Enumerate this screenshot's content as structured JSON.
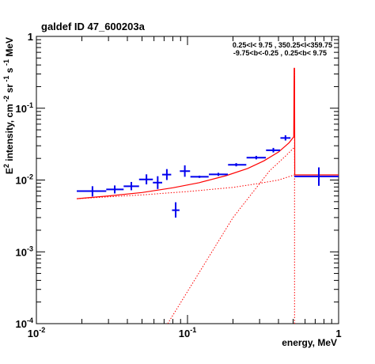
{
  "chart_data": {
    "type": "scatter",
    "title": "galdef ID 47_600203a",
    "annotation": {
      "line1": "0.25<l< 9.75 , 350.25<l<359.75",
      "line2": "-9.75<b<-0.25 ,  0.25<b< 9.75"
    },
    "xlabel": "energy, MeV",
    "ylabel_parts": [
      "E",
      "2",
      " intensity, cm",
      " -2",
      " sr",
      " -1",
      " s",
      " -1",
      " MeV"
    ],
    "xscale": "log",
    "yscale": "log",
    "xlim": [
      0.01,
      1
    ],
    "ylim": [
      0.0001,
      1
    ],
    "x_tick_labels": [
      {
        "value": 0.01,
        "base": "10",
        "exp": "-2"
      },
      {
        "value": 0.1,
        "base": "10",
        "exp": "-1"
      },
      {
        "value": 1,
        "base": "1",
        "exp": ""
      }
    ],
    "y_tick_labels": [
      {
        "value": 0.0001,
        "base": "10",
        "exp": "-4"
      },
      {
        "value": 0.001,
        "base": "10",
        "exp": "-3"
      },
      {
        "value": 0.01,
        "base": "10",
        "exp": "-2"
      },
      {
        "value": 0.1,
        "base": "10",
        "exp": "-1"
      },
      {
        "value": 1,
        "base": "1",
        "exp": ""
      }
    ],
    "colors": {
      "data": "#0000ee",
      "model": "#ff0000",
      "frame": "#000000"
    },
    "series": [
      {
        "kind": "data-points",
        "points": [
          {
            "x": 0.0235,
            "y": 0.007,
            "xlo": 0.0185,
            "xhi": 0.029,
            "ylo": 0.0059,
            "yhi": 0.0082
          },
          {
            "x": 0.033,
            "y": 0.0074,
            "xlo": 0.029,
            "xhi": 0.0378,
            "ylo": 0.0065,
            "yhi": 0.0084
          },
          {
            "x": 0.0425,
            "y": 0.0082,
            "xlo": 0.0378,
            "xhi": 0.0478,
            "ylo": 0.0072,
            "yhi": 0.0094
          },
          {
            "x": 0.0535,
            "y": 0.0102,
            "xlo": 0.0478,
            "xhi": 0.059,
            "ylo": 0.0087,
            "yhi": 0.012
          },
          {
            "x": 0.0635,
            "y": 0.0092,
            "xlo": 0.059,
            "xhi": 0.068,
            "ylo": 0.0075,
            "yhi": 0.0113
          },
          {
            "x": 0.073,
            "y": 0.0119,
            "xlo": 0.068,
            "xhi": 0.078,
            "ylo": 0.01,
            "yhi": 0.0142
          },
          {
            "x": 0.0835,
            "y": 0.0038,
            "xlo": 0.079,
            "xhi": 0.0885,
            "ylo": 0.003,
            "yhi": 0.0049
          },
          {
            "x": 0.096,
            "y": 0.0133,
            "xlo": 0.089,
            "xhi": 0.104,
            "ylo": 0.0111,
            "yhi": 0.016
          },
          {
            "x": 0.12,
            "y": 0.0111,
            "xlo": 0.1045,
            "xhi": 0.138,
            "ylo": 0.0107,
            "yhi": 0.0115
          },
          {
            "x": 0.16,
            "y": 0.012,
            "xlo": 0.1385,
            "xhi": 0.185,
            "ylo": 0.0114,
            "yhi": 0.0126
          },
          {
            "x": 0.21,
            "y": 0.0163,
            "xlo": 0.1855,
            "xhi": 0.245,
            "ylo": 0.0155,
            "yhi": 0.0172
          },
          {
            "x": 0.285,
            "y": 0.0205,
            "xlo": 0.246,
            "xhi": 0.33,
            "ylo": 0.0194,
            "yhi": 0.0217
          },
          {
            "x": 0.37,
            "y": 0.026,
            "xlo": 0.331,
            "xhi": 0.41,
            "ylo": 0.0242,
            "yhi": 0.028
          },
          {
            "x": 0.445,
            "y": 0.0385,
            "xlo": 0.412,
            "xhi": 0.48,
            "ylo": 0.0355,
            "yhi": 0.042
          },
          {
            "x": 0.74,
            "y": 0.0112,
            "xlo": 0.51,
            "xhi": 1.0,
            "ylo": 0.0083,
            "yhi": 0.015
          }
        ]
      },
      {
        "kind": "model-total",
        "style": "solid",
        "points": [
          [
            0.0185,
            0.0055
          ],
          [
            0.03,
            0.006
          ],
          [
            0.05,
            0.0067
          ],
          [
            0.08,
            0.0078
          ],
          [
            0.12,
            0.0092
          ],
          [
            0.18,
            0.0115
          ],
          [
            0.25,
            0.0145
          ],
          [
            0.32,
            0.0185
          ],
          [
            0.4,
            0.0245
          ],
          [
            0.47,
            0.033
          ],
          [
            0.505,
            0.04
          ],
          [
            0.508,
            0.36
          ],
          [
            0.511,
            0.36
          ],
          [
            0.513,
            0.0118
          ],
          [
            1.0,
            0.0118
          ]
        ]
      },
      {
        "kind": "model-component-1",
        "style": "dotted",
        "points": [
          [
            0.0185,
            0.0055
          ],
          [
            0.05,
            0.0062
          ],
          [
            0.1,
            0.0069
          ],
          [
            0.2,
            0.0079
          ],
          [
            0.3,
            0.009
          ],
          [
            0.4,
            0.01
          ],
          [
            0.51,
            0.0118
          ],
          [
            1.0,
            0.0118
          ]
        ]
      },
      {
        "kind": "model-component-2",
        "style": "dotted",
        "points": [
          [
            0.074,
            0.0001
          ],
          [
            0.2,
            0.003
          ],
          [
            0.35,
            0.0135
          ],
          [
            0.45,
            0.022
          ],
          [
            0.505,
            0.028
          ]
        ]
      },
      {
        "kind": "model-line",
        "style": "dotted",
        "points": [
          [
            0.511,
            0.0001
          ],
          [
            0.511,
            0.36
          ]
        ]
      }
    ]
  }
}
